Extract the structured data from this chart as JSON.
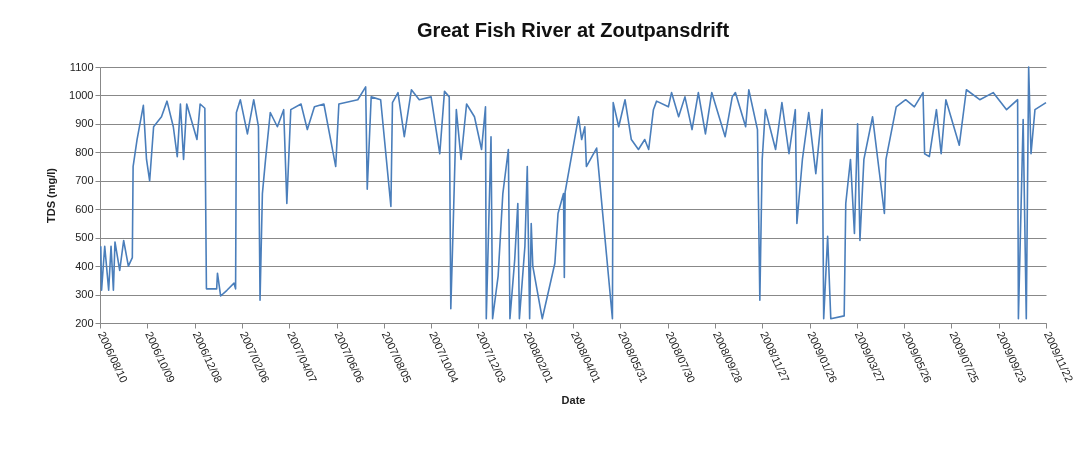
{
  "chart_data": {
    "type": "line",
    "title": "Great Fish River at Zoutpansdrift",
    "xlabel": "Date",
    "ylabel": "TDS (mg/l)",
    "xlim": [
      "2006-08-10",
      "2009-11-22"
    ],
    "ylim": [
      200,
      1100
    ],
    "yticks": [
      200,
      300,
      400,
      500,
      600,
      700,
      800,
      900,
      1000,
      1100
    ],
    "grid": "y",
    "xticks": [
      {
        "value": "2006-08-10",
        "label": "2006/08/10"
      },
      {
        "value": "2006-10-09",
        "label": "2006/10/09"
      },
      {
        "value": "2006-12-08",
        "label": "2006/12/08"
      },
      {
        "value": "2007-02-06",
        "label": "2007/02/06"
      },
      {
        "value": "2007-04-07",
        "label": "2007/04/07"
      },
      {
        "value": "2007-06-06",
        "label": "2007/06/06"
      },
      {
        "value": "2007-08-05",
        "label": "2007/08/05"
      },
      {
        "value": "2007-10-04",
        "label": "2007/10/04"
      },
      {
        "value": "2007-12-03",
        "label": "2007/12/03"
      },
      {
        "value": "2008-02-01",
        "label": "2008/02/01"
      },
      {
        "value": "2008-04-01",
        "label": "2008/04/01"
      },
      {
        "value": "2008-05-31",
        "label": "2008/05/31"
      },
      {
        "value": "2008-07-30",
        "label": "2008/07/30"
      },
      {
        "value": "2008-09-28",
        "label": "2008/09/28"
      },
      {
        "value": "2008-11-27",
        "label": "2008/11/27"
      },
      {
        "value": "2009-01-26",
        "label": "2009/01/26"
      },
      {
        "value": "2009-03-27",
        "label": "2009/03/27"
      },
      {
        "value": "2009-05-26",
        "label": "2009/05/26"
      },
      {
        "value": "2009-07-25",
        "label": "2009/07/25"
      },
      {
        "value": "2009-09-23",
        "label": "2009/09/23"
      },
      {
        "value": "2009-11-22",
        "label": "2009/11/22"
      }
    ],
    "series": [
      {
        "color": "#4a7ebb",
        "x": [
          "2006-08-11",
          "2006-08-12",
          "2006-08-16",
          "2006-08-21",
          "2006-08-24",
          "2006-08-27",
          "2006-08-29",
          "2006-09-04",
          "2006-09-09",
          "2006-09-15",
          "2006-09-20",
          "2006-09-21",
          "2006-09-26",
          "2006-10-04",
          "2006-10-08",
          "2006-10-12",
          "2006-10-17",
          "2006-10-27",
          "2006-11-03",
          "2006-11-11",
          "2006-11-16",
          "2006-11-20",
          "2006-11-24",
          "2006-11-28",
          "2006-12-11",
          "2006-12-15",
          "2006-12-21",
          "2006-12-23",
          "2007-01-05",
          "2007-01-06",
          "2007-01-10",
          "2007-01-18",
          "2007-01-27",
          "2007-01-29",
          "2007-01-30",
          "2007-02-04",
          "2007-02-13",
          "2007-02-21",
          "2007-02-27",
          "2007-03-01",
          "2007-03-04",
          "2007-03-08",
          "2007-03-14",
          "2007-03-23",
          "2007-03-31",
          "2007-04-04",
          "2007-04-09",
          "2007-04-22",
          "2007-04-30",
          "2007-05-09",
          "2007-05-21",
          "2007-06-05",
          "2007-06-09",
          "2007-07-03",
          "2007-07-13",
          "2007-07-15",
          "2007-07-20",
          "2007-08-01",
          "2007-08-14",
          "2007-08-16",
          "2007-08-23",
          "2007-08-31",
          "2007-09-09",
          "2007-09-19",
          "2007-10-04",
          "2007-10-15",
          "2007-10-21",
          "2007-10-27",
          "2007-10-29",
          "2007-11-01",
          "2007-11-05",
          "2007-11-11",
          "2007-11-18",
          "2007-11-28",
          "2007-12-07",
          "2007-12-12",
          "2007-12-13",
          "2007-12-19",
          "2007-12-21",
          "2007-12-28",
          "2008-01-03",
          "2008-01-10",
          "2008-01-12",
          "2008-01-18",
          "2008-01-22",
          "2008-01-24",
          "2008-01-31",
          "2008-02-03",
          "2008-02-06",
          "2008-02-08",
          "2008-02-10",
          "2008-02-22",
          "2008-03-09",
          "2008-03-13",
          "2008-03-20",
          "2008-03-21",
          "2008-03-22",
          "2008-04-08",
          "2008-04-12",
          "2008-04-16",
          "2008-04-18",
          "2008-04-25",
          "2008-05-01",
          "2008-05-21",
          "2008-05-22",
          "2008-05-29",
          "2008-06-06",
          "2008-06-14",
          "2008-06-23",
          "2008-07-01",
          "2008-07-06",
          "2008-07-12",
          "2008-07-16",
          "2008-07-31",
          "2008-08-04",
          "2008-08-13",
          "2008-08-21",
          "2008-08-30",
          "2008-09-07",
          "2008-09-16",
          "2008-09-24",
          "2008-10-11",
          "2008-10-20",
          "2008-10-24",
          "2008-11-06",
          "2008-11-10",
          "2008-11-21",
          "2008-11-24",
          "2008-11-27",
          "2008-12-01",
          "2008-12-14",
          "2008-12-22",
          "2008-12-31",
          "2009-01-08",
          "2009-01-10",
          "2009-01-17",
          "2009-01-25",
          "2009-02-03",
          "2009-02-11",
          "2009-02-13",
          "2009-02-18",
          "2009-02-22",
          "2009-03-11",
          "2009-03-13",
          "2009-03-19",
          "2009-03-24",
          "2009-03-28",
          "2009-03-31",
          "2009-04-05",
          "2009-04-16",
          "2009-05-01",
          "2009-05-03",
          "2009-05-16",
          "2009-05-28",
          "2009-06-08",
          "2009-06-19",
          "2009-06-21",
          "2009-06-27",
          "2009-07-06",
          "2009-07-12",
          "2009-07-18",
          "2009-08-04",
          "2009-08-13",
          "2009-08-30",
          "2009-09-16",
          "2009-10-03",
          "2009-10-17",
          "2009-10-18",
          "2009-10-24",
          "2009-10-28",
          "2009-10-31",
          "2009-11-03",
          "2009-11-08",
          "2009-11-22"
        ],
        "values": [
          470,
          315,
          470,
          315,
          470,
          315,
          485,
          385,
          490,
          400,
          430,
          750,
          845,
          965,
          775,
          700,
          890,
          925,
          980,
          890,
          785,
          970,
          775,
          970,
          845,
          970,
          955,
          320,
          320,
          375,
          295,
          315,
          340,
          320,
          940,
          985,
          865,
          985,
          890,
          280,
          655,
          775,
          940,
          890,
          950,
          620,
          950,
          970,
          880,
          960,
          970,
          750,
          970,
          985,
          1030,
          670,
          995,
          985,
          610,
          975,
          1010,
          855,
          1020,
          985,
          995,
          795,
          1015,
          995,
          250,
          540,
          950,
          775,
          970,
          925,
          810,
          960,
          215,
          855,
          215,
          365,
          655,
          810,
          215,
          420,
          620,
          215,
          470,
          750,
          215,
          550,
          400,
          215,
          410,
          585,
          655,
          360,
          660,
          925,
          845,
          890,
          750,
          785,
          815,
          215,
          975,
          890,
          985,
          845,
          810,
          845,
          810,
          950,
          980,
          960,
          1010,
          925,
          995,
          880,
          1010,
          865,
          1010,
          855,
          995,
          1010,
          890,
          1020,
          880,
          280,
          775,
          950,
          810,
          975,
          795,
          950,
          550,
          775,
          940,
          725,
          950,
          215,
          505,
          215,
          225,
          620,
          775,
          515,
          900,
          490,
          775,
          925,
          585,
          775,
          960,
          985,
          960,
          1010,
          795,
          785,
          950,
          795,
          985,
          825,
          1020,
          985,
          1010,
          950,
          985,
          215,
          915,
          215,
          1100,
          795,
          950,
          975
        ]
      }
    ]
  }
}
